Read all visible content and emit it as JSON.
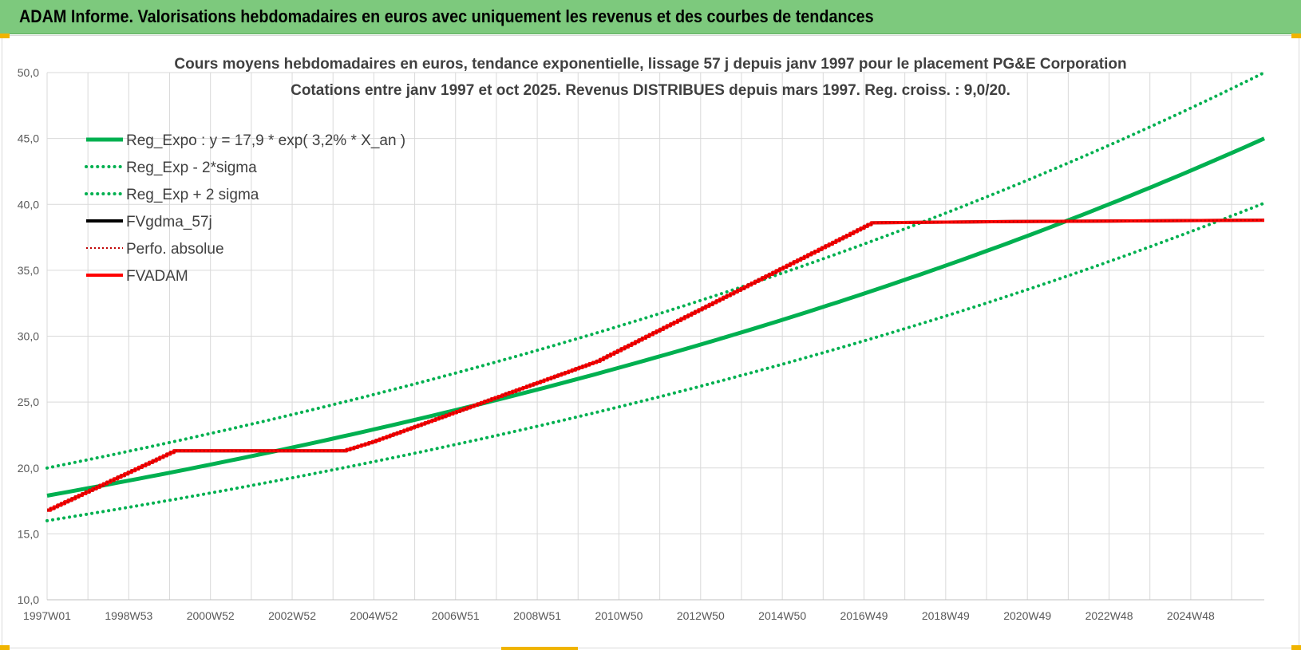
{
  "header": {
    "title": "ADAM Informe. Valorisations hebdomadaires en euros avec uniquement les revenus et des courbes de tendances"
  },
  "colors": {
    "header_bg": "#7dc97d",
    "green": "#00b050",
    "red": "#ff0000",
    "black": "#000000",
    "dark_red": "#c00000",
    "grid": "#d9d9d9"
  },
  "chart_data": {
    "type": "line",
    "title_line1": "Cours moyens hebdomadaires en euros, tendance exponentielle, lissage 57 j depuis janv 1997  pour le placement PG&E Corporation",
    "title_line2": "Cotations entre janv 1997 et oct 2025. Revenus  DISTRIBUES depuis mars 1997.  Reg. croiss. : 9,0/20.",
    "ylim": [
      10,
      50
    ],
    "y_ticks": [
      "10,0",
      "15,0",
      "20,0",
      "25,0",
      "30,0",
      "35,0",
      "40,0",
      "45,0",
      "50,0"
    ],
    "x_ticks": [
      "1997W01",
      "1998W53",
      "2000W52",
      "2002W52",
      "2004W52",
      "2006W51",
      "2008W51",
      "2010W50",
      "2012W50",
      "2014W50",
      "2016W49",
      "2018W49",
      "2020W49",
      "2022W48",
      "2024W48"
    ],
    "x_range_years": [
      1997.0,
      2025.8
    ],
    "grid": true,
    "legend_position": "top-left",
    "legend": [
      "Reg_Expo : y = 17,9 * exp( 3,2% *  X_an )",
      "Reg_Exp - 2*sigma",
      "Reg_Exp + 2 sigma",
      "FVgdma_57j",
      "Perfo. absolue",
      "FVADAM"
    ],
    "series": [
      {
        "name": "Reg_Expo : y = 17,9 * exp( 3,2% *  X_an )",
        "style": "solid-green",
        "x": [
          1997.0,
          2000.0,
          2004.0,
          2008.0,
          2012.0,
          2016.0,
          2020.0,
          2024.0,
          2025.8
        ],
        "values": [
          17.9,
          19.7,
          22.8,
          25.9,
          29.5,
          33.5,
          38.1,
          43.3,
          45.0
        ]
      },
      {
        "name": "Reg_Exp - 2*sigma",
        "style": "dotted-green",
        "x": [
          1997.0,
          2000.0,
          2004.0,
          2008.0,
          2012.0,
          2016.0,
          2020.0,
          2024.0,
          2025.8
        ],
        "values": [
          16.0,
          17.6,
          20.3,
          23.1,
          26.3,
          29.9,
          34.0,
          38.6,
          40.1
        ]
      },
      {
        "name": "Reg_Exp + 2 sigma",
        "style": "dotted-green",
        "x": [
          1997.0,
          2000.0,
          2004.0,
          2008.0,
          2012.0,
          2016.0,
          2020.0,
          2024.0,
          2025.8
        ],
        "values": [
          20.0,
          22.0,
          25.3,
          28.7,
          32.8,
          37.3,
          42.4,
          48.2,
          50.0
        ]
      },
      {
        "name": "FVgdma_57j",
        "style": "solid-black",
        "x": [
          1997.0,
          2000.0,
          2004.0,
          2004.7,
          2010.0,
          2016.5,
          2020.0,
          2025.8
        ],
        "values": [
          16.8,
          21.3,
          21.3,
          22.0,
          28.1,
          38.6,
          38.7,
          38.8
        ]
      },
      {
        "name": "Perfo. absolue",
        "style": "dotted-darkred",
        "x": [
          1997.0,
          2000.0,
          2004.0,
          2004.7,
          2010.0,
          2016.5,
          2020.0,
          2025.8
        ],
        "values": [
          16.8,
          21.3,
          21.3,
          22.0,
          28.1,
          38.6,
          38.7,
          38.8
        ]
      },
      {
        "name": "FVADAM",
        "style": "solid-red",
        "x": [
          1997.0,
          2000.0,
          2004.0,
          2004.7,
          2010.0,
          2016.5,
          2020.0,
          2025.8
        ],
        "values": [
          16.8,
          21.3,
          21.3,
          22.0,
          28.1,
          38.6,
          38.7,
          38.8
        ]
      }
    ]
  }
}
